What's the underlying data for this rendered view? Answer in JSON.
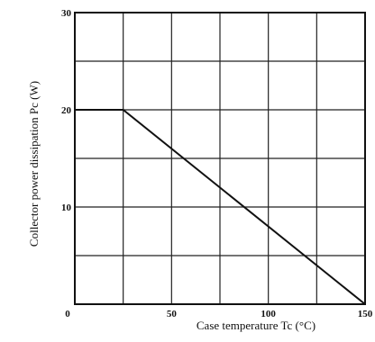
{
  "chart_data": {
    "type": "line",
    "xlabel": "Case temperature  Tc (°C)",
    "ylabel": "Collector power dissipation  Pc (W)",
    "xlim": [
      0,
      150
    ],
    "ylim": [
      0,
      30
    ],
    "x_ticks": [
      0,
      50,
      100,
      150
    ],
    "y_ticks": [
      10,
      20,
      30
    ],
    "x_tick_labels": [
      "0",
      "50",
      "100",
      "150"
    ],
    "y_tick_labels": [
      "10",
      "20",
      "30"
    ],
    "grid": true,
    "grid_step_x": 25,
    "grid_step_y": 5,
    "series": [
      {
        "x": [
          0,
          25,
          150
        ],
        "y": [
          20,
          20,
          0
        ]
      }
    ],
    "colors": {
      "line": "#111111",
      "grid": "#222222",
      "frame": "#111111"
    }
  }
}
